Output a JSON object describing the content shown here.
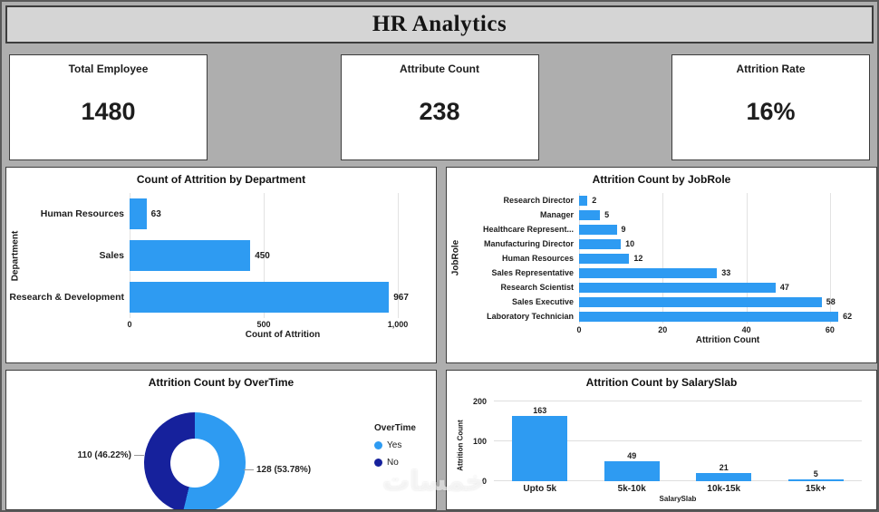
{
  "header": {
    "title": "HR Analytics"
  },
  "kpis": [
    {
      "label": "Total Employee",
      "value": "1480"
    },
    {
      "label": "Attribute Count",
      "value": "238"
    },
    {
      "label": "Attrition Rate",
      "value": "16%"
    }
  ],
  "colors": {
    "bar_blue": "#2E9BF2",
    "navy": "#16219C",
    "gridline": "#E2E2E2"
  },
  "chart_data": [
    {
      "type": "bar",
      "orientation": "horizontal",
      "title": "Count of Attrition by Department",
      "categories": [
        "Human Resources",
        "Sales",
        "Research & Development"
      ],
      "values": [
        63,
        450,
        967
      ],
      "value_labels": [
        "63",
        "450",
        "967"
      ],
      "xlabel": "Count of Attrition",
      "ylabel": "Department",
      "xmax": 1000,
      "xtick_values": [
        0,
        500,
        1000
      ],
      "xtick_labels": [
        "0",
        "500",
        "1,000"
      ]
    },
    {
      "type": "bar",
      "orientation": "horizontal",
      "title": "Attrition Count by JobRole",
      "categories": [
        "Research Director",
        "Manager",
        "Healthcare Represent...",
        "Manufacturing Director",
        "Human Resources",
        "Sales Representative",
        "Research Scientist",
        "Sales Executive",
        "Laboratory Technician"
      ],
      "values": [
        2,
        5,
        9,
        10,
        12,
        33,
        47,
        58,
        62
      ],
      "value_labels": [
        "2",
        "5",
        "9",
        "10",
        "12",
        "33",
        "47",
        "58",
        "62"
      ],
      "xlabel": "Attrition Count",
      "ylabel": "JobRole",
      "xmax": 65,
      "xtick_values": [
        0,
        20,
        40,
        60
      ],
      "xtick_labels": [
        "0",
        "20",
        "40",
        "60"
      ]
    },
    {
      "type": "pie",
      "title": "Attrition Count by OverTime",
      "legend_title": "OverTime",
      "slices": [
        {
          "label": "Yes",
          "value": 128,
          "display": "128 (53.78%)",
          "color": "#2E9BF2"
        },
        {
          "label": "No",
          "value": 110,
          "display": "110 (46.22%)",
          "color": "#16219C"
        }
      ]
    },
    {
      "type": "bar",
      "orientation": "vertical",
      "title": "Attrition Count by SalarySlab",
      "categories": [
        "Upto 5k",
        "5k-10k",
        "10k-15k",
        "15k+"
      ],
      "values": [
        163,
        49,
        21,
        5
      ],
      "value_labels": [
        "163",
        "49",
        "21",
        "5"
      ],
      "xlabel": "SalarySlab",
      "ylabel": "Attrition Count",
      "ymax": 200,
      "ytick_values": [
        0,
        100,
        200
      ],
      "ytick_labels": [
        "0",
        "100",
        "200"
      ]
    }
  ],
  "watermark": {
    "text": "خمسات"
  }
}
